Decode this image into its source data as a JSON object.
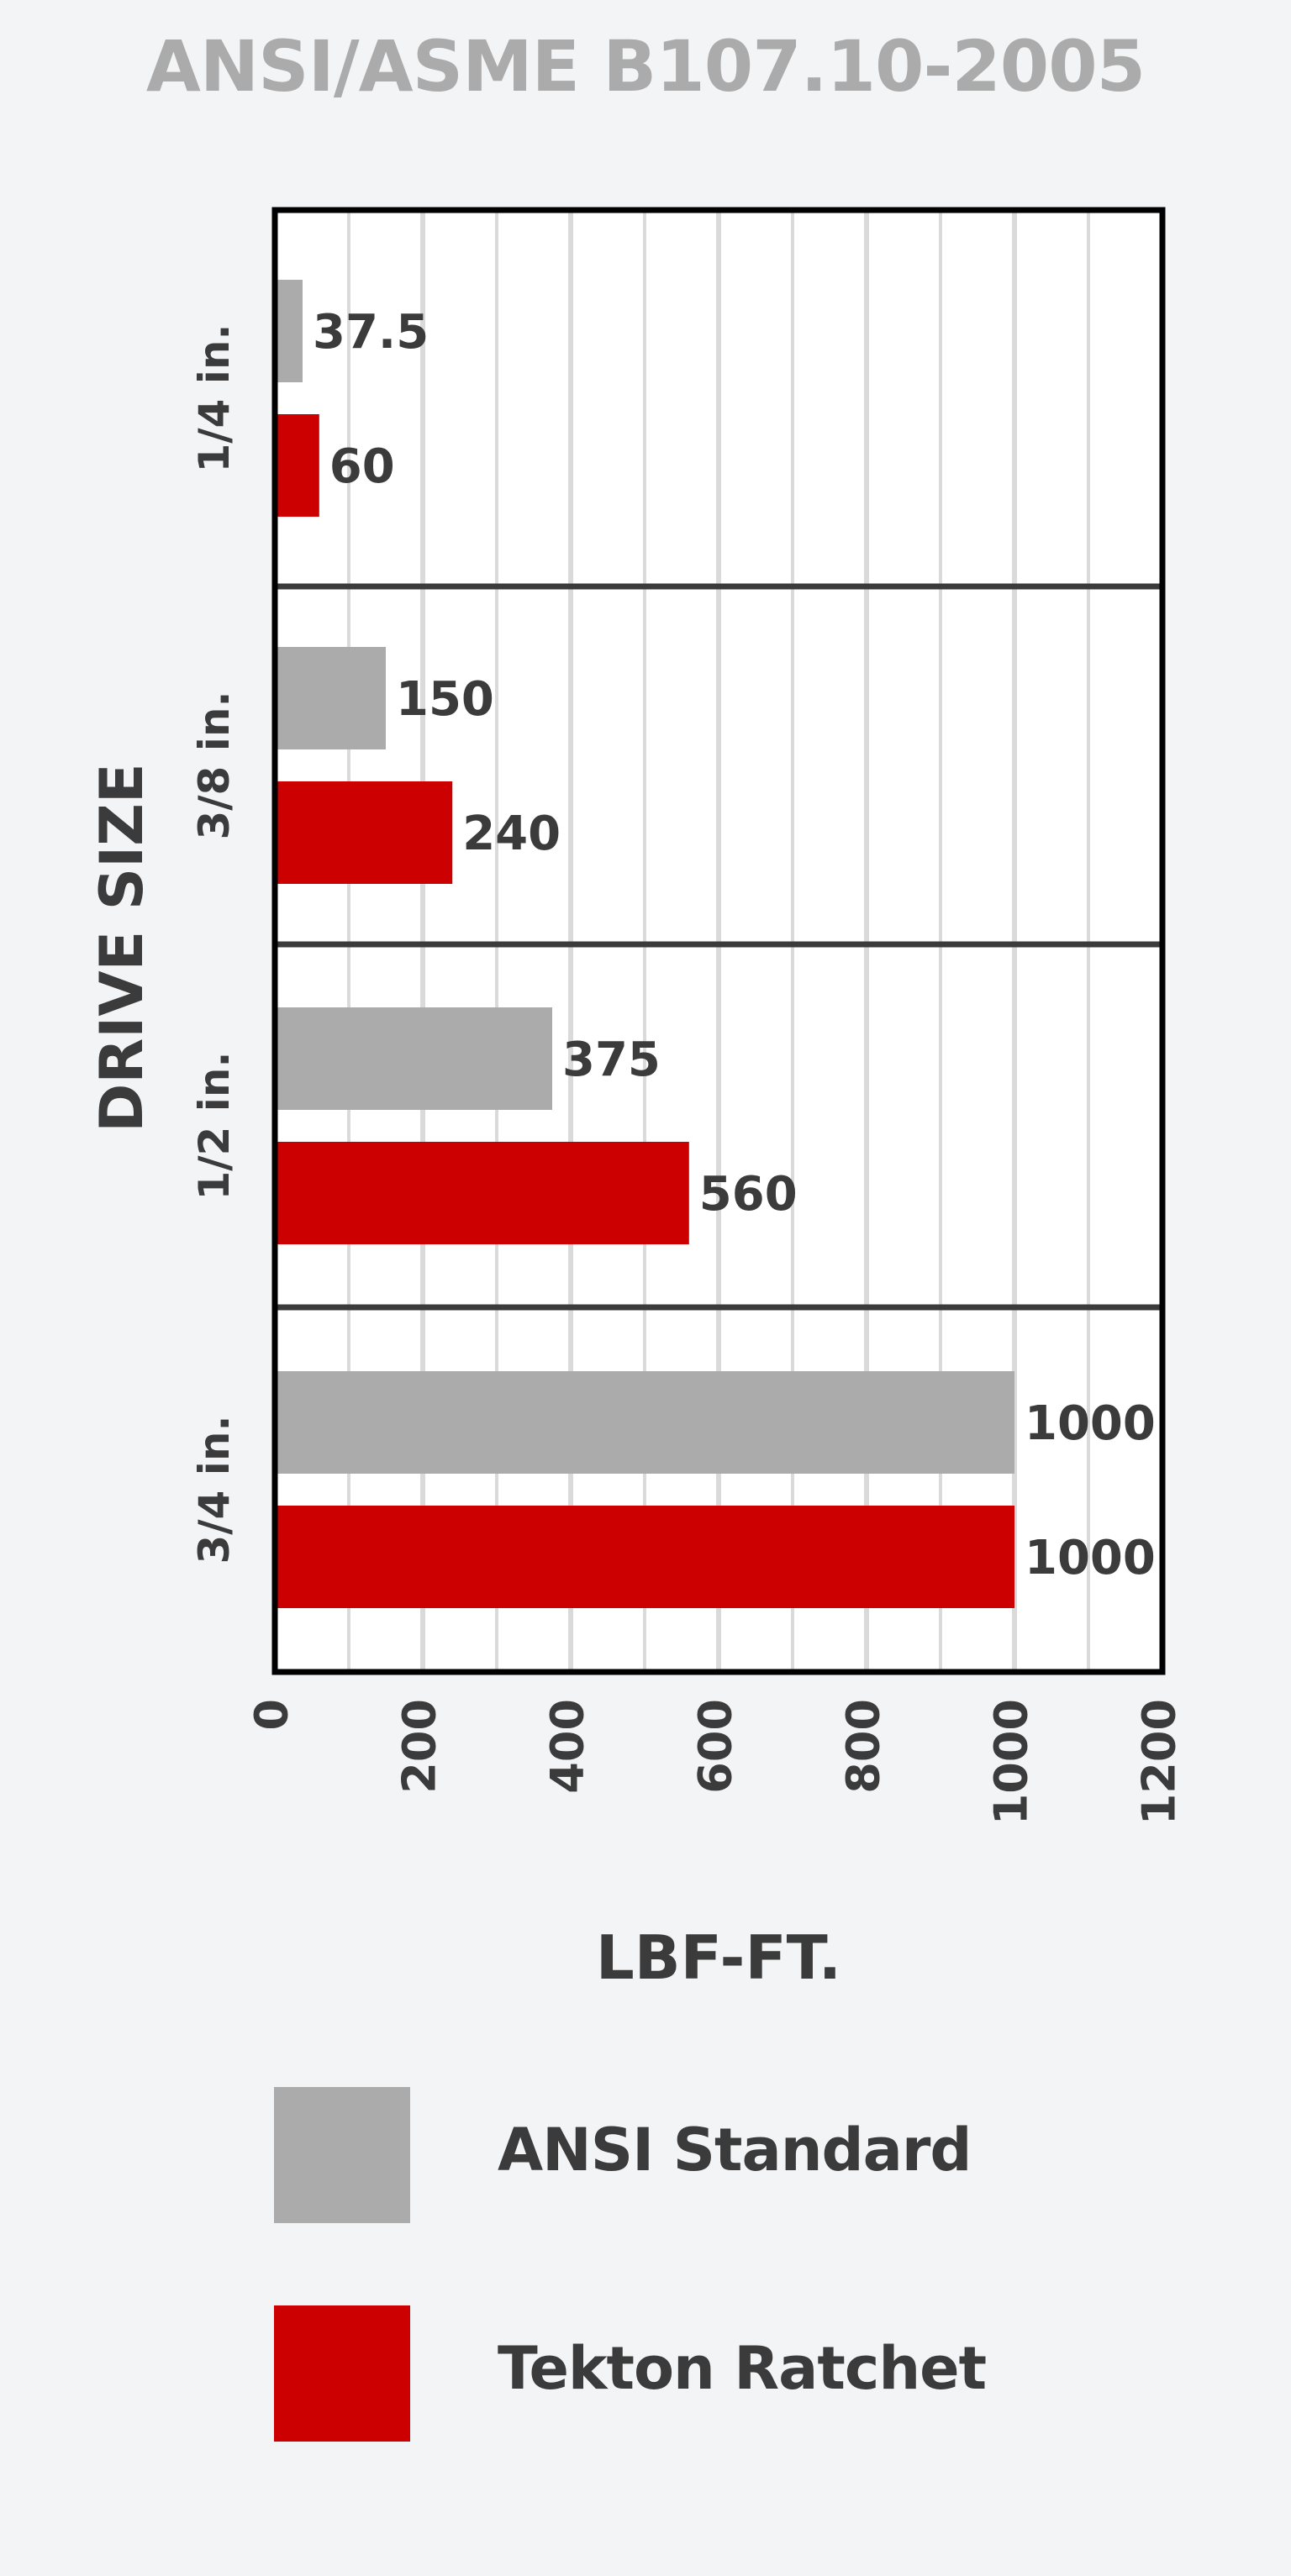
{
  "chart_data": {
    "type": "bar",
    "orientation": "horizontal",
    "title": "ANSI/ASME B107.10-2005",
    "xlabel": "LBF-FT.",
    "ylabel": "DRIVE SIZE",
    "categories": [
      "1/4 in.",
      "3/8 in.",
      "1/2 in.",
      "3/4 in."
    ],
    "series": [
      {
        "name": "ANSI Standard",
        "color": "#ababab",
        "values": [
          37.5,
          150,
          375,
          1000
        ]
      },
      {
        "name": "Tekton Ratchet",
        "color": "#cc0000",
        "values": [
          60,
          240,
          560,
          1000
        ]
      }
    ],
    "value_labels": [
      [
        "37.5",
        "150",
        "375",
        "1000"
      ],
      [
        "60",
        "240",
        "560",
        "1000"
      ]
    ],
    "xlim": [
      0,
      1200
    ],
    "xticks": [
      0,
      200,
      400,
      600,
      800,
      1000,
      1200
    ],
    "xtick_labels": [
      "0",
      "200",
      "400",
      "600",
      "800",
      "1000",
      "1200"
    ],
    "grid": true,
    "legend_position": "bottom"
  }
}
